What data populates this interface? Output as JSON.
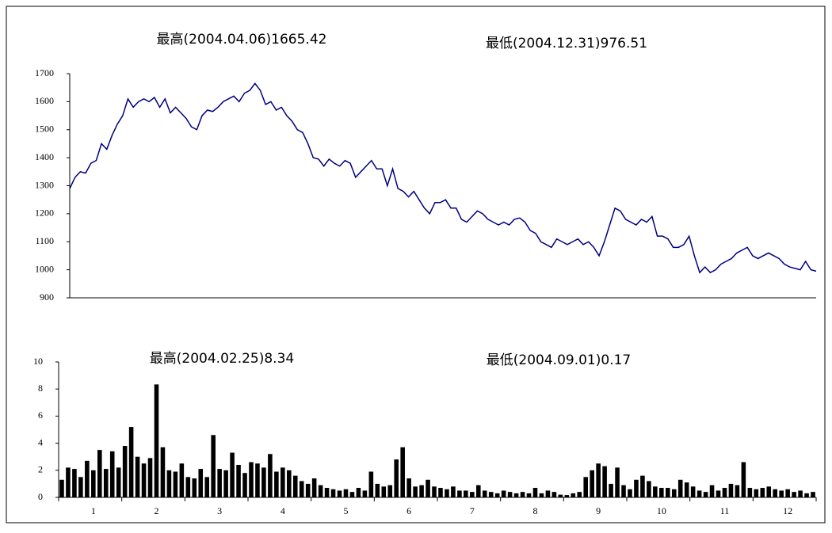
{
  "chart_data": [
    {
      "type": "line",
      "color": "#000080",
      "annotations": [
        "最高(2004.04.06)1665.42",
        "最低(2004.12.31)976.51"
      ],
      "ylim": [
        900,
        1700
      ],
      "yticks": [
        900,
        1000,
        1100,
        1200,
        1300,
        1400,
        1500,
        1600,
        1700
      ],
      "values": [
        1290,
        1330,
        1350,
        1345,
        1380,
        1390,
        1450,
        1430,
        1480,
        1520,
        1550,
        1610,
        1580,
        1600,
        1610,
        1600,
        1615,
        1580,
        1610,
        1560,
        1580,
        1560,
        1540,
        1510,
        1500,
        1550,
        1570,
        1565,
        1580,
        1600,
        1610,
        1620,
        1600,
        1630,
        1640,
        1665,
        1640,
        1590,
        1600,
        1570,
        1580,
        1550,
        1530,
        1500,
        1490,
        1450,
        1400,
        1395,
        1370,
        1395,
        1380,
        1370,
        1390,
        1380,
        1330,
        1350,
        1370,
        1390,
        1360,
        1360,
        1300,
        1360,
        1290,
        1280,
        1260,
        1280,
        1250,
        1220,
        1200,
        1240,
        1240,
        1250,
        1220,
        1220,
        1180,
        1170,
        1190,
        1210,
        1200,
        1180,
        1170,
        1160,
        1170,
        1160,
        1180,
        1185,
        1170,
        1140,
        1130,
        1100,
        1090,
        1080,
        1110,
        1100,
        1090,
        1100,
        1110,
        1090,
        1100,
        1080,
        1050,
        1100,
        1160,
        1220,
        1210,
        1180,
        1170,
        1160,
        1180,
        1170,
        1190,
        1120,
        1120,
        1110,
        1080,
        1080,
        1090,
        1120,
        1050,
        990,
        1010,
        990,
        1000,
        1020,
        1030,
        1040,
        1060,
        1070,
        1080,
        1050,
        1040,
        1050,
        1060,
        1050,
        1040,
        1020,
        1010,
        1005,
        1000,
        1030,
        1000,
        995
      ]
    },
    {
      "type": "bar",
      "color": "#000000",
      "annotations": [
        "最高(2004.02.25)8.34",
        "最低(2004.09.01)0.17"
      ],
      "ylim": [
        0,
        10
      ],
      "yticks": [
        0,
        2,
        4,
        6,
        8,
        10
      ],
      "categories": [
        null,
        null,
        null,
        null,
        null,
        "1",
        null,
        null,
        null,
        null,
        null,
        null,
        null,
        null,
        null,
        "2",
        null,
        null,
        null,
        null,
        null,
        null,
        null,
        null,
        null,
        "3",
        null,
        null,
        null,
        null,
        null,
        null,
        null,
        null,
        null,
        "4",
        null,
        null,
        null,
        null,
        null,
        null,
        null,
        null,
        null,
        "5",
        null,
        null,
        null,
        null,
        null,
        null,
        null,
        null,
        null,
        "6",
        null,
        null,
        null,
        null,
        null,
        null,
        null,
        null,
        null,
        "7",
        null,
        null,
        null,
        null,
        null,
        null,
        null,
        null,
        null,
        "8",
        null,
        null,
        null,
        null,
        null,
        null,
        null,
        null,
        null,
        "9",
        null,
        null,
        null,
        null,
        null,
        null,
        null,
        null,
        null,
        "10",
        null,
        null,
        null,
        null,
        null,
        null,
        null,
        null,
        null,
        "11",
        null,
        null,
        null,
        null,
        null,
        null,
        null,
        null,
        null,
        "12",
        null,
        null,
        null,
        null
      ],
      "values": [
        1.3,
        2.2,
        2.1,
        1.5,
        2.7,
        2.0,
        3.5,
        2.1,
        3.4,
        2.2,
        3.8,
        5.2,
        3.0,
        2.5,
        2.9,
        8.34,
        3.7,
        2.0,
        1.9,
        2.5,
        1.5,
        1.4,
        2.1,
        1.5,
        4.6,
        2.1,
        2.0,
        3.3,
        2.4,
        1.8,
        2.6,
        2.5,
        2.2,
        3.2,
        1.9,
        2.2,
        2.0,
        1.6,
        1.2,
        1.0,
        1.4,
        0.9,
        0.7,
        0.6,
        0.5,
        0.6,
        0.4,
        0.7,
        0.5,
        1.9,
        1.0,
        0.8,
        0.9,
        2.8,
        3.7,
        1.4,
        0.8,
        0.9,
        1.3,
        0.8,
        0.7,
        0.6,
        0.8,
        0.5,
        0.5,
        0.4,
        0.9,
        0.5,
        0.4,
        0.3,
        0.5,
        0.4,
        0.3,
        0.4,
        0.3,
        0.7,
        0.3,
        0.5,
        0.4,
        0.2,
        0.17,
        0.3,
        0.4,
        1.5,
        2.0,
        2.5,
        2.3,
        1.0,
        2.2,
        0.9,
        0.6,
        1.3,
        1.6,
        1.2,
        0.8,
        0.7,
        0.7,
        0.6,
        1.3,
        1.1,
        0.8,
        0.5,
        0.4,
        0.9,
        0.5,
        0.7,
        1.0,
        0.9,
        2.6,
        0.7,
        0.6,
        0.7,
        0.8,
        0.6,
        0.5,
        0.6,
        0.4,
        0.5,
        0.3,
        0.4
      ]
    }
  ]
}
